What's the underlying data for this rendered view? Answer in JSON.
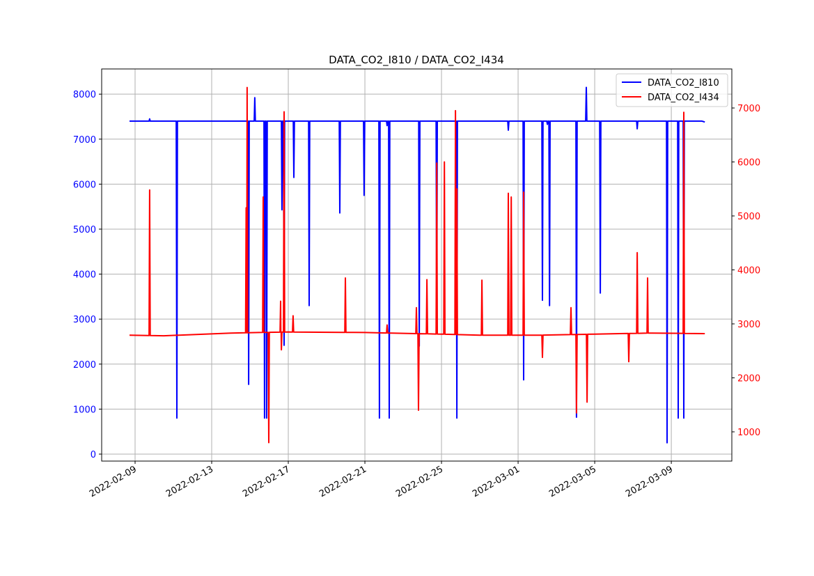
{
  "chart_data": {
    "type": "line",
    "title": "DATA_CO2_I810 / DATA_CO2_I434",
    "x_origin": "2022-02-09",
    "x_unit": "days since x_origin",
    "xlim": [
      -1.745,
      31.16
    ],
    "x_ticks": [
      {
        "d": 0,
        "label": "2022-02-09"
      },
      {
        "d": 4,
        "label": "2022-02-13"
      },
      {
        "d": 8,
        "label": "2022-02-17"
      },
      {
        "d": 12,
        "label": "2022-02-21"
      },
      {
        "d": 16,
        "label": "2022-02-25"
      },
      {
        "d": 20,
        "label": "2022-03-01"
      },
      {
        "d": 24,
        "label": "2022-03-05"
      },
      {
        "d": 28,
        "label": "2022-03-09"
      }
    ],
    "left_axis": {
      "ylim": [
        -155,
        8560
      ],
      "ticks": [
        "0",
        "1000",
        "2000",
        "3000",
        "4000",
        "5000",
        "6000",
        "7000",
        "8000"
      ],
      "color": "#0000ff"
    },
    "right_axis": {
      "ylim": [
        458,
        7723
      ],
      "ticks": [
        "1000",
        "2000",
        "3000",
        "4000",
        "5000",
        "6000",
        "7000"
      ],
      "color": "#ff0000"
    },
    "grid": true,
    "legend_position": "top-right",
    "series": [
      {
        "name": "DATA_CO2_I810",
        "axis": "left",
        "color": "#0000ff",
        "baseline": [
          [
            -0.29,
            7400
          ],
          [
            29.6,
            7400
          ],
          [
            29.75,
            7380
          ]
        ],
        "spikes": [
          [
            0.76,
            7450
          ],
          [
            2.18,
            800
          ],
          [
            5.93,
            1550
          ],
          [
            6.25,
            7920
          ],
          [
            6.76,
            800
          ],
          [
            6.87,
            800
          ],
          [
            7.67,
            5430
          ],
          [
            7.78,
            2420
          ],
          [
            8.29,
            6150
          ],
          [
            9.09,
            3300
          ],
          [
            10.69,
            5360
          ],
          [
            11.96,
            5750
          ],
          [
            12.76,
            800
          ],
          [
            13.16,
            7300
          ],
          [
            13.27,
            800
          ],
          [
            14.84,
            2400
          ],
          [
            15.75,
            2700
          ],
          [
            16.8,
            800
          ],
          [
            19.49,
            7200
          ],
          [
            20.29,
            1650
          ],
          [
            21.27,
            3420
          ],
          [
            21.53,
            7330
          ],
          [
            21.64,
            3300
          ],
          [
            23.05,
            820
          ],
          [
            23.56,
            8150
          ],
          [
            24.29,
            3580
          ],
          [
            26.22,
            7230
          ],
          [
            27.78,
            250
          ],
          [
            28.36,
            800
          ],
          [
            28.65,
            800
          ]
        ]
      },
      {
        "name": "DATA_CO2_I434",
        "axis": "right",
        "color": "#ff0000",
        "baseline": [
          [
            -0.29,
            2790
          ],
          [
            1.5,
            2780
          ],
          [
            5,
            2830
          ],
          [
            8,
            2850
          ],
          [
            12,
            2840
          ],
          [
            16,
            2810
          ],
          [
            18,
            2790
          ],
          [
            21,
            2790
          ],
          [
            24,
            2810
          ],
          [
            27,
            2830
          ],
          [
            29.75,
            2820
          ]
        ],
        "spikes": [
          [
            0.76,
            5480
          ],
          [
            5.8,
            5150
          ],
          [
            5.85,
            7380
          ],
          [
            6.69,
            5350
          ],
          [
            6.98,
            800
          ],
          [
            7.6,
            3420
          ],
          [
            7.64,
            2520
          ],
          [
            7.78,
            6930
          ],
          [
            8.25,
            3150
          ],
          [
            10.98,
            3850
          ],
          [
            13.16,
            2980
          ],
          [
            14.69,
            3300
          ],
          [
            14.8,
            1400
          ],
          [
            15.24,
            3820
          ],
          [
            15.75,
            5980
          ],
          [
            16.15,
            6000
          ],
          [
            16.73,
            6950
          ],
          [
            16.8,
            5500
          ],
          [
            18.11,
            3810
          ],
          [
            19.49,
            5420
          ],
          [
            19.64,
            5350
          ],
          [
            20.29,
            5440
          ],
          [
            21.27,
            2380
          ],
          [
            22.76,
            3300
          ],
          [
            23.05,
            1350
          ],
          [
            23.6,
            1550
          ],
          [
            25.78,
            2300
          ],
          [
            26.22,
            4320
          ],
          [
            26.76,
            3850
          ],
          [
            28.65,
            6920
          ]
        ]
      }
    ]
  }
}
